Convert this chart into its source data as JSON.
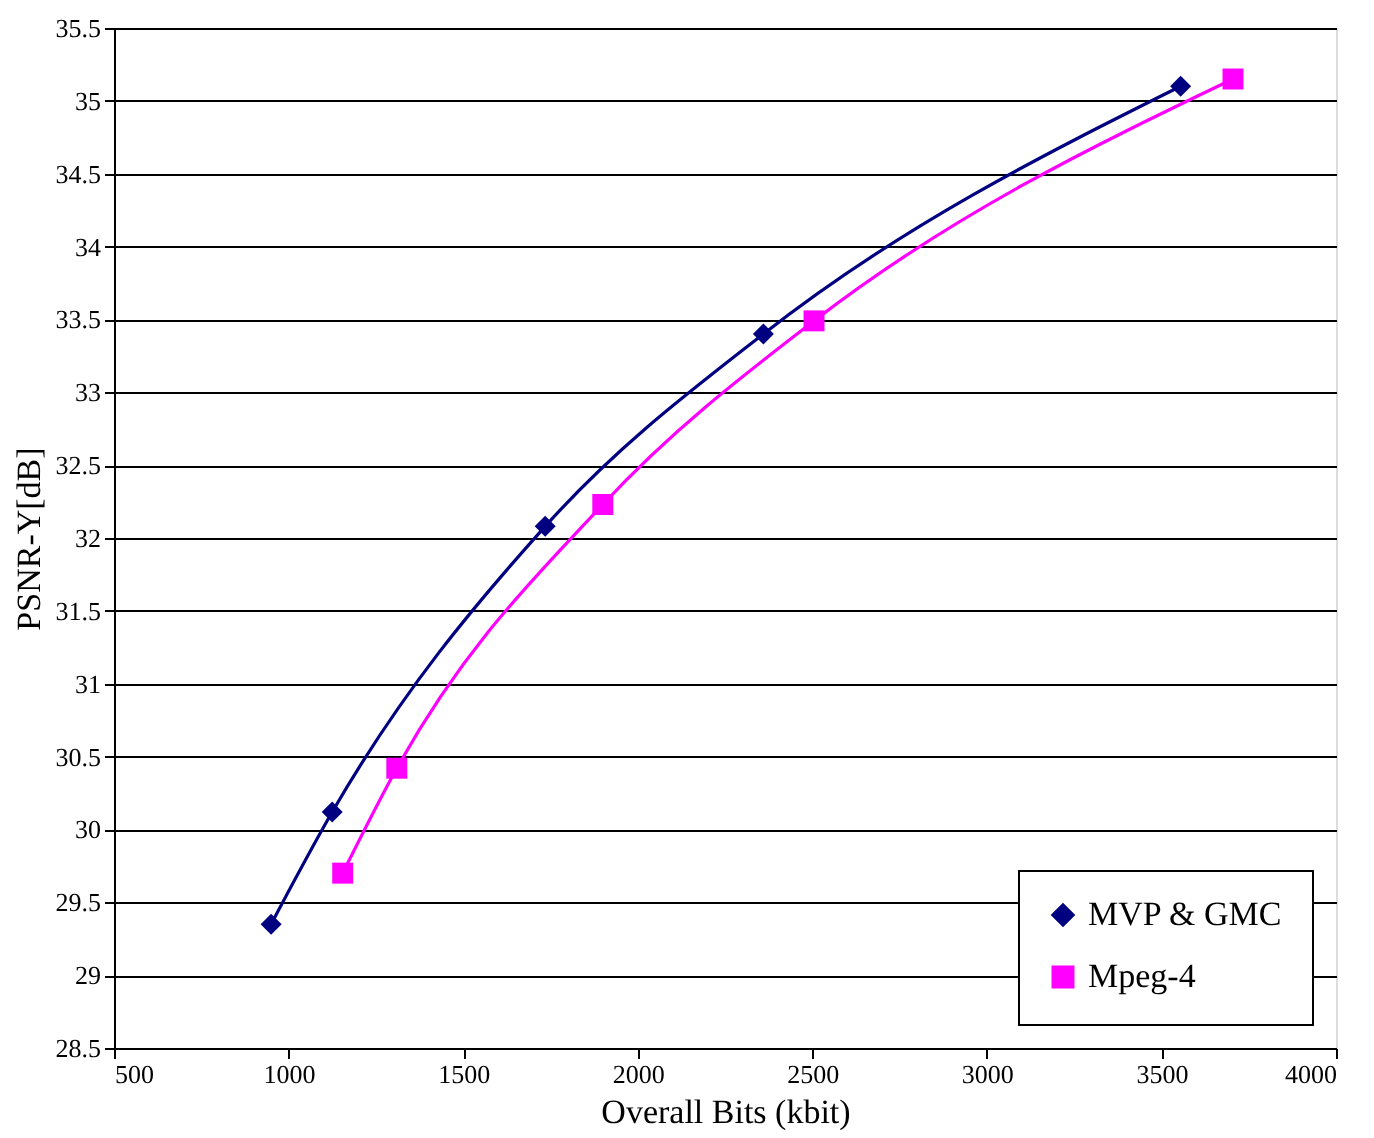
{
  "chart_data": {
    "type": "line",
    "xlabel": "Overall Bits (kbit)",
    "ylabel": "PSNR-Y[dB]",
    "xlim": [
      500,
      4000
    ],
    "xticks": [
      500,
      1000,
      1500,
      2000,
      2500,
      3000,
      3500,
      4000
    ],
    "ylim": [
      28.5,
      35.5
    ],
    "yticks": [
      28.5,
      29,
      29.5,
      30,
      30.5,
      31,
      31.5,
      32,
      32.5,
      33,
      33.5,
      34,
      34.5,
      35,
      35.5
    ],
    "grid": "y",
    "legend": "bottom right",
    "series": [
      {
        "name": "MVP & GMC",
        "color": "#000080",
        "marker": "diamond",
        "x": [
          950,
          1125,
          1735,
          2360,
          3555
        ],
        "values": [
          29.35,
          30.12,
          32.08,
          33.4,
          35.1
        ]
      },
      {
        "name": "Mpeg-4",
        "color": "#ff00ff",
        "marker": "square",
        "x": [
          1155,
          1310,
          1900,
          2505,
          3705
        ],
        "values": [
          29.7,
          30.42,
          32.23,
          33.49,
          35.15
        ]
      }
    ]
  }
}
